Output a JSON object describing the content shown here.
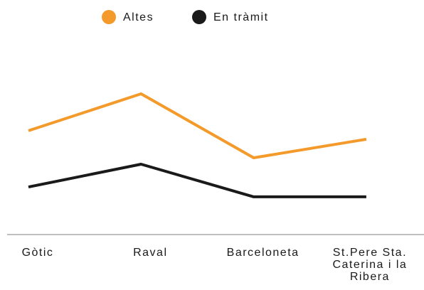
{
  "chart_data": {
    "type": "line",
    "categories": [
      "Gòtic",
      "Raval",
      "Barceloneta",
      "St.Pere Sta. Caterina i la Ribera"
    ],
    "series": [
      {
        "name": "Altes",
        "color": "#f39a2a",
        "values": [
          48.7,
          66,
          36,
          44.7
        ]
      },
      {
        "name": "En tràmit",
        "color": "#1a1a1a",
        "values": [
          22.3,
          33,
          17.7,
          17.7
        ]
      }
    ],
    "ylim": [
      0,
      100
    ]
  }
}
